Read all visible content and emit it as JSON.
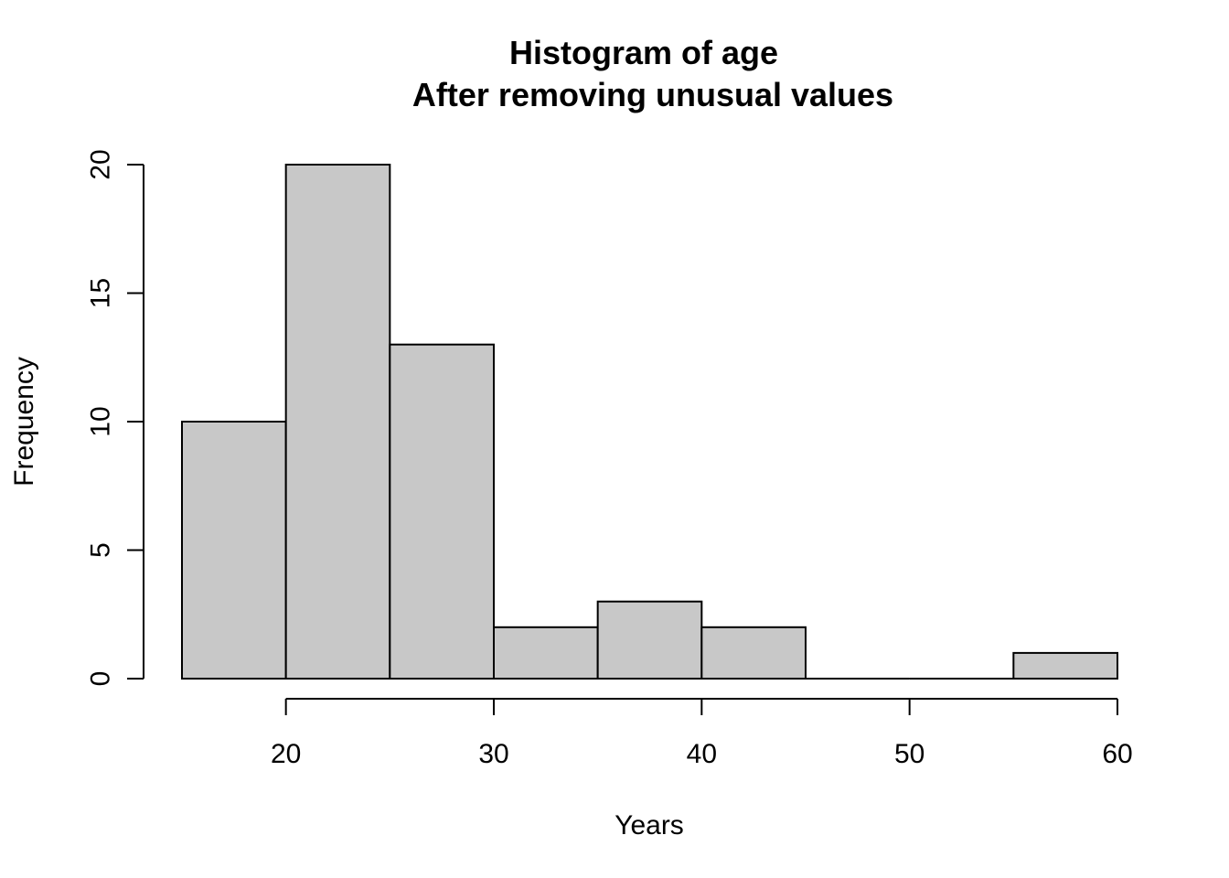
{
  "chart_data": {
    "type": "bar",
    "subtype": "histogram",
    "title": "Histogram of age",
    "subtitle": "After removing unusual values",
    "xlabel": "Years",
    "ylabel": "Frequency",
    "bins": [
      {
        "start": 15,
        "end": 20,
        "count": 10
      },
      {
        "start": 20,
        "end": 25,
        "count": 20
      },
      {
        "start": 25,
        "end": 30,
        "count": 13
      },
      {
        "start": 30,
        "end": 35,
        "count": 2
      },
      {
        "start": 35,
        "end": 40,
        "count": 3
      },
      {
        "start": 40,
        "end": 45,
        "count": 2
      },
      {
        "start": 45,
        "end": 50,
        "count": 0
      },
      {
        "start": 50,
        "end": 55,
        "count": 0
      },
      {
        "start": 55,
        "end": 60,
        "count": 1
      }
    ],
    "xlim": [
      15,
      60
    ],
    "ylim": [
      0,
      20
    ],
    "x_ticks": [
      20,
      30,
      40,
      50,
      60
    ],
    "y_ticks": [
      0,
      5,
      10,
      15,
      20
    ],
    "bar_color": "#c8c8c8",
    "edge_color": "#000000",
    "grid": false,
    "legend": "none"
  }
}
